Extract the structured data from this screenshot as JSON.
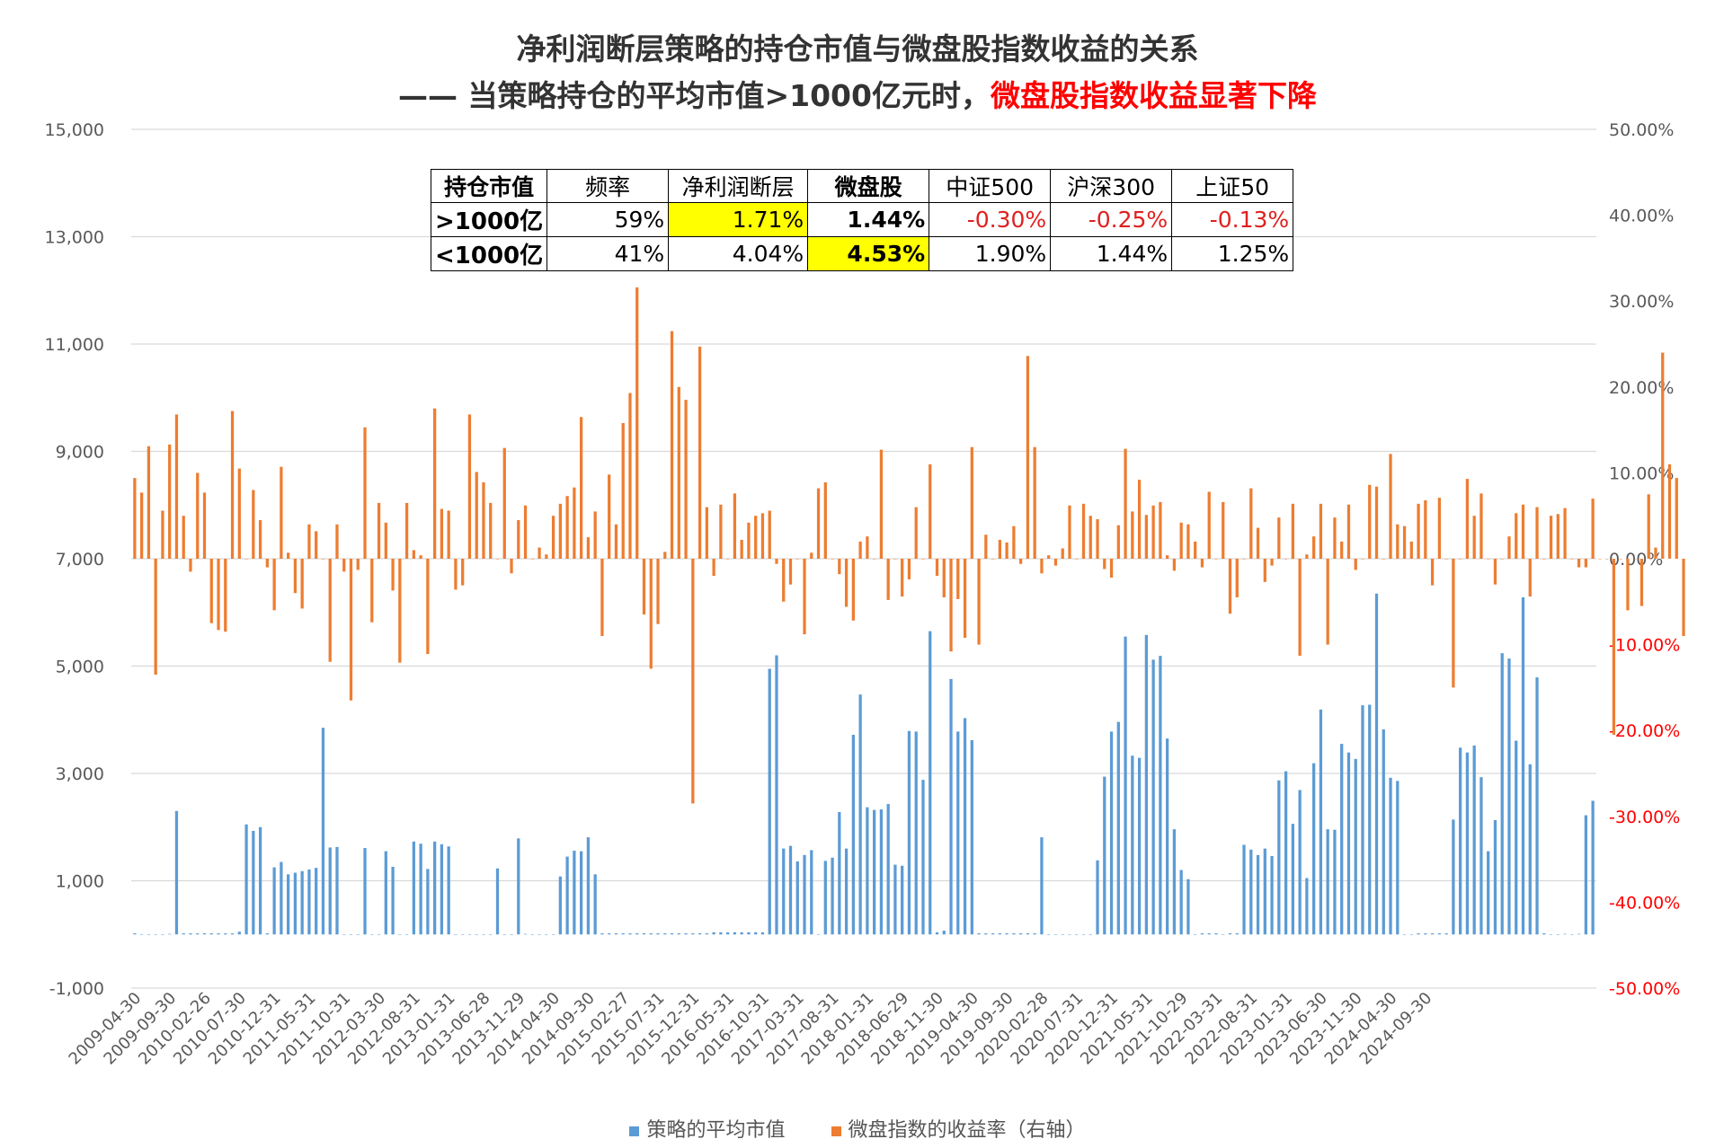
{
  "title_line1": "净利润断层策略的持仓市值与微盘股指数收益的关系",
  "title_line2_prefix": "—— 当策略持仓的平均市值>1000亿元时，",
  "title_line2_highlight": "微盘股指数收益显著下降",
  "colors": {
    "bar_series": "#5b9bd5",
    "return_series": "#ed7d31",
    "negative_tick": "#ff0000",
    "highlight": "#ffff00",
    "gridline": "#d9d9d9"
  },
  "stats_table": {
    "headers": [
      "持仓市值",
      "频率",
      "净利润断层",
      "微盘股",
      "中证500",
      "沪深300",
      "上证50"
    ],
    "rows": [
      {
        "label": ">1000亿",
        "values": [
          "59%",
          "1.71%",
          "1.44%",
          "-0.30%",
          "-0.25%",
          "-0.13%"
        ]
      },
      {
        "label": "<1000亿",
        "values": [
          "41%",
          "4.04%",
          "4.53%",
          "1.90%",
          "1.44%",
          "1.25%"
        ]
      }
    ]
  },
  "legend": {
    "series1": "策略的平均市值",
    "series2": "微盘指数的收益率（右轴）"
  },
  "chart_data": {
    "type": "bar",
    "title": "净利润断层策略的持仓市值与微盘股指数收益的关系",
    "legend_position": "bottom",
    "grid": true,
    "y_left": {
      "min": -1000,
      "max": 15000,
      "step": 2000,
      "tick_labels": [
        "-1,000",
        "1,000",
        "3,000",
        "5,000",
        "7,000",
        "9,000",
        "11,000",
        "13,000",
        "15,000"
      ]
    },
    "y_right": {
      "min": -0.5,
      "max": 0.5,
      "step": 0.1,
      "tick_labels": [
        "-50.00%",
        "-40.00%",
        "-30.00%",
        "-20.00%",
        "-10.00%",
        "0.00%",
        "10.00%",
        "20.00%",
        "30.00%",
        "40.00%",
        "50.00%"
      ]
    },
    "x_tick_labels": [
      "2009-04-30",
      "2009-09-30",
      "2010-02-26",
      "2010-07-30",
      "2010-12-31",
      "2011-05-31",
      "2011-10-31",
      "2012-03-30",
      "2012-08-31",
      "2013-01-31",
      "2013-06-28",
      "2013-11-29",
      "2014-04-30",
      "2014-09-30",
      "2015-02-27",
      "2015-07-31",
      "2015-12-31",
      "2016-05-31",
      "2016-10-31",
      "2017-03-31",
      "2017-08-31",
      "2018-01-31",
      "2018-06-29",
      "2018-11-30",
      "2019-04-30",
      "2019-09-30",
      "2020-02-28",
      "2020-07-31",
      "2020-12-31",
      "2021-05-31",
      "2021-10-29",
      "2022-03-31",
      "2022-08-31",
      "2023-01-31",
      "2023-06-30",
      "2023-11-30",
      "2024-04-30",
      "2024-09-30"
    ],
    "series": [
      {
        "name": "策略的平均市值",
        "axis": "left",
        "values": [
          20,
          0,
          0,
          0,
          0,
          10,
          2300,
          20,
          20,
          20,
          20,
          20,
          20,
          20,
          20,
          50,
          2050,
          1930,
          2000,
          20,
          1250,
          1350,
          1120,
          1150,
          1180,
          1210,
          1240,
          3850,
          1620,
          1630,
          0,
          0,
          0,
          1610,
          0,
          0,
          1550,
          1260,
          0,
          0,
          1730,
          1690,
          1220,
          1730,
          1680,
          1640,
          0,
          0,
          0,
          0,
          0,
          0,
          1230,
          0,
          0,
          1790,
          10,
          0,
          0,
          0,
          0,
          1080,
          1450,
          1560,
          1550,
          1810,
          1120,
          20,
          20,
          20,
          20,
          20,
          20,
          20,
          20,
          20,
          20,
          20,
          20,
          20,
          20,
          20,
          20,
          40,
          40,
          40,
          40,
          40,
          40,
          40,
          40,
          4950,
          5200,
          1600,
          1650,
          1360,
          1480,
          1570,
          0,
          1370,
          1430,
          2280,
          1600,
          3720,
          4470,
          2370,
          2320,
          2330,
          2430,
          1300,
          1280,
          3790,
          3780,
          2880,
          5650,
          40,
          70,
          4760,
          3780,
          4030,
          3620,
          20,
          20,
          20,
          20,
          20,
          20,
          20,
          20,
          20,
          1810,
          0,
          0,
          0,
          0,
          0,
          0,
          0,
          1380,
          2940,
          3780,
          3960,
          5550,
          3330,
          3290,
          5580,
          5120,
          5190,
          3650,
          1960,
          1200,
          1030,
          0,
          20,
          20,
          20,
          0,
          20,
          20,
          1670,
          1580,
          1480,
          1600,
          1460,
          2870,
          3040,
          2060,
          2690,
          1050,
          3190,
          4190,
          1960,
          1950,
          3550,
          3390,
          3270,
          4270,
          4280,
          6350,
          3820,
          2920,
          2860,
          0,
          0,
          20,
          20,
          20,
          20,
          20,
          2140,
          3480,
          3390,
          3520,
          2930,
          1550,
          2130,
          5240,
          5140,
          3610,
          6280,
          3170,
          4790,
          20,
          0,
          0,
          10,
          0,
          10,
          2220,
          2490
        ]
      },
      {
        "name": "微盘指数的收益率（右轴）",
        "axis": "right",
        "values": [
          0.094,
          0.077,
          0.131,
          -0.135,
          0.056,
          0.133,
          0.168,
          0.05,
          -0.015,
          0.1,
          0.077,
          -0.075,
          -0.083,
          -0.085,
          0.172,
          0.105,
          0.0,
          0.08,
          0.045,
          -0.01,
          -0.06,
          0.107,
          0.007,
          -0.04,
          -0.058,
          0.04,
          0.032,
          0.0,
          -0.12,
          0.04,
          -0.015,
          -0.165,
          -0.013,
          0.153,
          -0.074,
          0.065,
          0.042,
          -0.037,
          -0.121,
          0.065,
          0.01,
          0.004,
          -0.111,
          0.175,
          0.058,
          0.056,
          -0.036,
          -0.031,
          0.168,
          0.101,
          0.089,
          0.065,
          0.0,
          0.129,
          -0.017,
          0.045,
          0.062,
          0.0,
          0.013,
          0.005,
          0.05,
          0.064,
          0.073,
          0.083,
          0.165,
          0.025,
          0.055,
          -0.09,
          0.098,
          0.04,
          0.158,
          0.193,
          0.316,
          -0.065,
          -0.128,
          -0.076,
          0.008,
          0.265,
          0.2,
          0.185,
          -0.285,
          0.247,
          0.06,
          -0.02,
          0.063,
          0.0,
          0.076,
          0.022,
          0.042,
          0.05,
          0.053,
          0.056,
          -0.006,
          -0.05,
          -0.03,
          0.0,
          -0.088,
          0.007,
          0.082,
          0.089,
          0.0,
          -0.018,
          -0.056,
          -0.072,
          0.02,
          0.026,
          0.0,
          0.127,
          -0.048,
          0.0,
          -0.044,
          -0.024,
          0.06,
          0.0,
          0.11,
          -0.02,
          -0.045,
          -0.108,
          -0.047,
          -0.092,
          0.13,
          -0.1,
          0.028,
          0.0,
          0.022,
          0.019,
          0.038,
          -0.006,
          0.236,
          0.13,
          -0.017,
          0.004,
          -0.008,
          0.012,
          0.062,
          0.0,
          0.064,
          0.05,
          0.046,
          -0.012,
          -0.022,
          0.039,
          0.128,
          0.055,
          0.092,
          0.051,
          0.062,
          0.066,
          0.004,
          -0.014,
          0.042,
          0.04,
          0.02,
          -0.01,
          0.078,
          0.0,
          0.066,
          -0.064,
          -0.045,
          0.0,
          0.082,
          0.036,
          -0.027,
          -0.008,
          0.048,
          0.0,
          0.064,
          -0.113,
          0.005,
          0.026,
          0.064,
          -0.1,
          0.048,
          0.02,
          0.063,
          -0.013,
          0.0,
          0.086,
          0.084,
          0.0,
          0.122,
          0.04,
          0.038,
          0.02,
          0.064,
          0.068,
          -0.031,
          0.071,
          0.0,
          -0.15,
          0.0,
          0.093,
          0.05,
          0.076,
          0.0,
          -0.03,
          0.0,
          0.026,
          0.053,
          0.063,
          -0.044,
          0.06,
          0.0,
          0.05,
          0.052,
          0.059,
          0.0,
          -0.01,
          -0.01,
          0.07,
          0.0,
          0.0,
          -0.205,
          0.0,
          -0.06,
          0.0,
          -0.055,
          0.075,
          0.013,
          0.24,
          0.11,
          0.094,
          -0.09
        ]
      }
    ]
  }
}
